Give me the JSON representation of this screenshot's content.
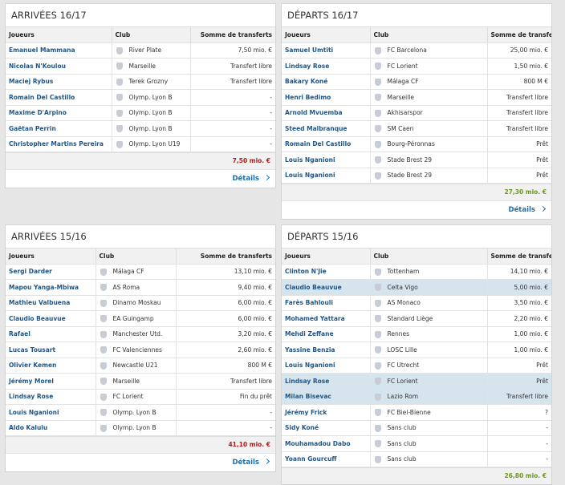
{
  "panels": [
    {
      "title": "ARRIVÉES 16/17",
      "headers": [
        "Joueurs",
        "Club",
        "Somme de transferts"
      ],
      "total_color": "#b3191a",
      "rows": [
        {
          "player": "Emanuel Mammana",
          "club": "River Plate",
          "fee": "7,50 mio. €"
        },
        {
          "player": "Nicolas N'Koulou",
          "club": "Marseille",
          "fee": "Transfert libre"
        },
        {
          "player": "Maciej Rybus",
          "club": "Terek Grozny",
          "fee": "Transfert libre"
        },
        {
          "player": "Romain Del Castillo",
          "club": "Olymp. Lyon B",
          "fee": "-"
        },
        {
          "player": "Maxime D'Arpino",
          "club": "Olymp. Lyon B",
          "fee": "-"
        },
        {
          "player": "Gaëtan Perrin",
          "club": "Olymp. Lyon B",
          "fee": "-"
        },
        {
          "player": "Christopher Martins Pereira",
          "club": "Olymp. Lyon U19",
          "fee": "-"
        }
      ],
      "total": "7,50 mio. €",
      "details": "Détails"
    },
    {
      "title": "DÉPARTS 16/17",
      "headers": [
        "Joueurs",
        "Club",
        "Somme de transferts"
      ],
      "total_color": "#6b9a1d",
      "rows": [
        {
          "player": "Samuel Umtiti",
          "club": "FC Barcelona",
          "fee": "25,00 mio. €"
        },
        {
          "player": "Lindsay Rose",
          "club": "FC Lorient",
          "fee": "1,50 mio. €"
        },
        {
          "player": "Bakary Koné",
          "club": "Málaga CF",
          "fee": "800 M €"
        },
        {
          "player": "Henri Bedimo",
          "club": "Marseille",
          "fee": "Transfert libre"
        },
        {
          "player": "Arnold Mvuemba",
          "club": "Akhisarspor",
          "fee": "Transfert libre"
        },
        {
          "player": "Steed Malbranque",
          "club": "SM Caen",
          "fee": "Transfert libre"
        },
        {
          "player": "Romain Del Castillo",
          "club": "Bourg-Péronnas",
          "fee": "Prêt"
        },
        {
          "player": "Louis Nganioni",
          "club": "Stade Brest 29",
          "fee": "Prêt"
        },
        {
          "player": "Louis Nganioni",
          "club": "Stade Brest 29",
          "fee": "Prêt"
        }
      ],
      "total": "27,30 mio. €",
      "details": "Détails"
    },
    {
      "title": "ARRIVÉES 15/16",
      "headers": [
        "Joueurs",
        "Club",
        "Somme de transferts"
      ],
      "total_color": "#b3191a",
      "rows": [
        {
          "player": "Sergi Darder",
          "club": "Málaga CF",
          "fee": "13,10 mio. €"
        },
        {
          "player": "Mapou Yanga-Mbiwa",
          "club": "AS Roma",
          "fee": "9,40 mio. €"
        },
        {
          "player": "Mathieu Valbuena",
          "club": "Dinamo Moskau",
          "fee": "6,00 mio. €"
        },
        {
          "player": "Claudio Beauvue",
          "club": "EA Guingamp",
          "fee": "6,00 mio. €"
        },
        {
          "player": "Rafael",
          "club": "Manchester Utd.",
          "fee": "3,20 mio. €"
        },
        {
          "player": "Lucas Tousart",
          "club": "FC Valenciennes",
          "fee": "2,60 mio. €"
        },
        {
          "player": "Olivier Kemen",
          "club": "Newcastle U21",
          "fee": "800 M €"
        },
        {
          "player": "Jérémy Morel",
          "club": "Marseille",
          "fee": "Transfert libre"
        },
        {
          "player": "Lindsay Rose",
          "club": "FC Lorient",
          "fee": "Fin du prêt"
        },
        {
          "player": "Louis Nganioni",
          "club": "Olymp. Lyon B",
          "fee": "-"
        },
        {
          "player": "Aldo Kalulu",
          "club": "Olymp. Lyon B",
          "fee": "-"
        }
      ],
      "total": "41,10 mio. €",
      "details": "Détails"
    },
    {
      "title": "DÉPARTS 15/16",
      "headers": [
        "Joueurs",
        "Club",
        "Somme de transferts"
      ],
      "total_color": "#6b9a1d",
      "rows": [
        {
          "player": "Clinton N'Jie",
          "club": "Tottenham",
          "fee": "14,10 mio. €"
        },
        {
          "player": "Claudio Beauvue",
          "club": "Celta Vigo",
          "fee": "5,00 mio. €",
          "highlight": true
        },
        {
          "player": "Farès Bahlouli",
          "club": "AS Monaco",
          "fee": "3,50 mio. €"
        },
        {
          "player": "Mohamed Yattara",
          "club": "Standard Liège",
          "fee": "2,20 mio. €"
        },
        {
          "player": "Mehdi Zeffane",
          "club": "Rennes",
          "fee": "1,00 mio. €"
        },
        {
          "player": "Yassine Benzia",
          "club": "LOSC Lille",
          "fee": "1,00 mio. €"
        },
        {
          "player": "Louis Nganioni",
          "club": "FC Utrecht",
          "fee": "Prêt"
        },
        {
          "player": "Lindsay Rose",
          "club": "FC Lorient",
          "fee": "Prêt",
          "highlight": true
        },
        {
          "player": "Milan Bisevac",
          "club": "Lazio Rom",
          "fee": "Transfert libre",
          "highlight": true
        },
        {
          "player": "Jérémy Frick",
          "club": "FC Biel-Bienne",
          "fee": "?"
        },
        {
          "player": "Sidy Koné",
          "club": "Sans club",
          "fee": "-"
        },
        {
          "player": "Mouhamadou Dabo",
          "club": "Sans club",
          "fee": "-"
        },
        {
          "player": "Yoann Gourcuff",
          "club": "Sans club",
          "fee": "-"
        }
      ],
      "total": "26,80 mio. €"
    }
  ]
}
